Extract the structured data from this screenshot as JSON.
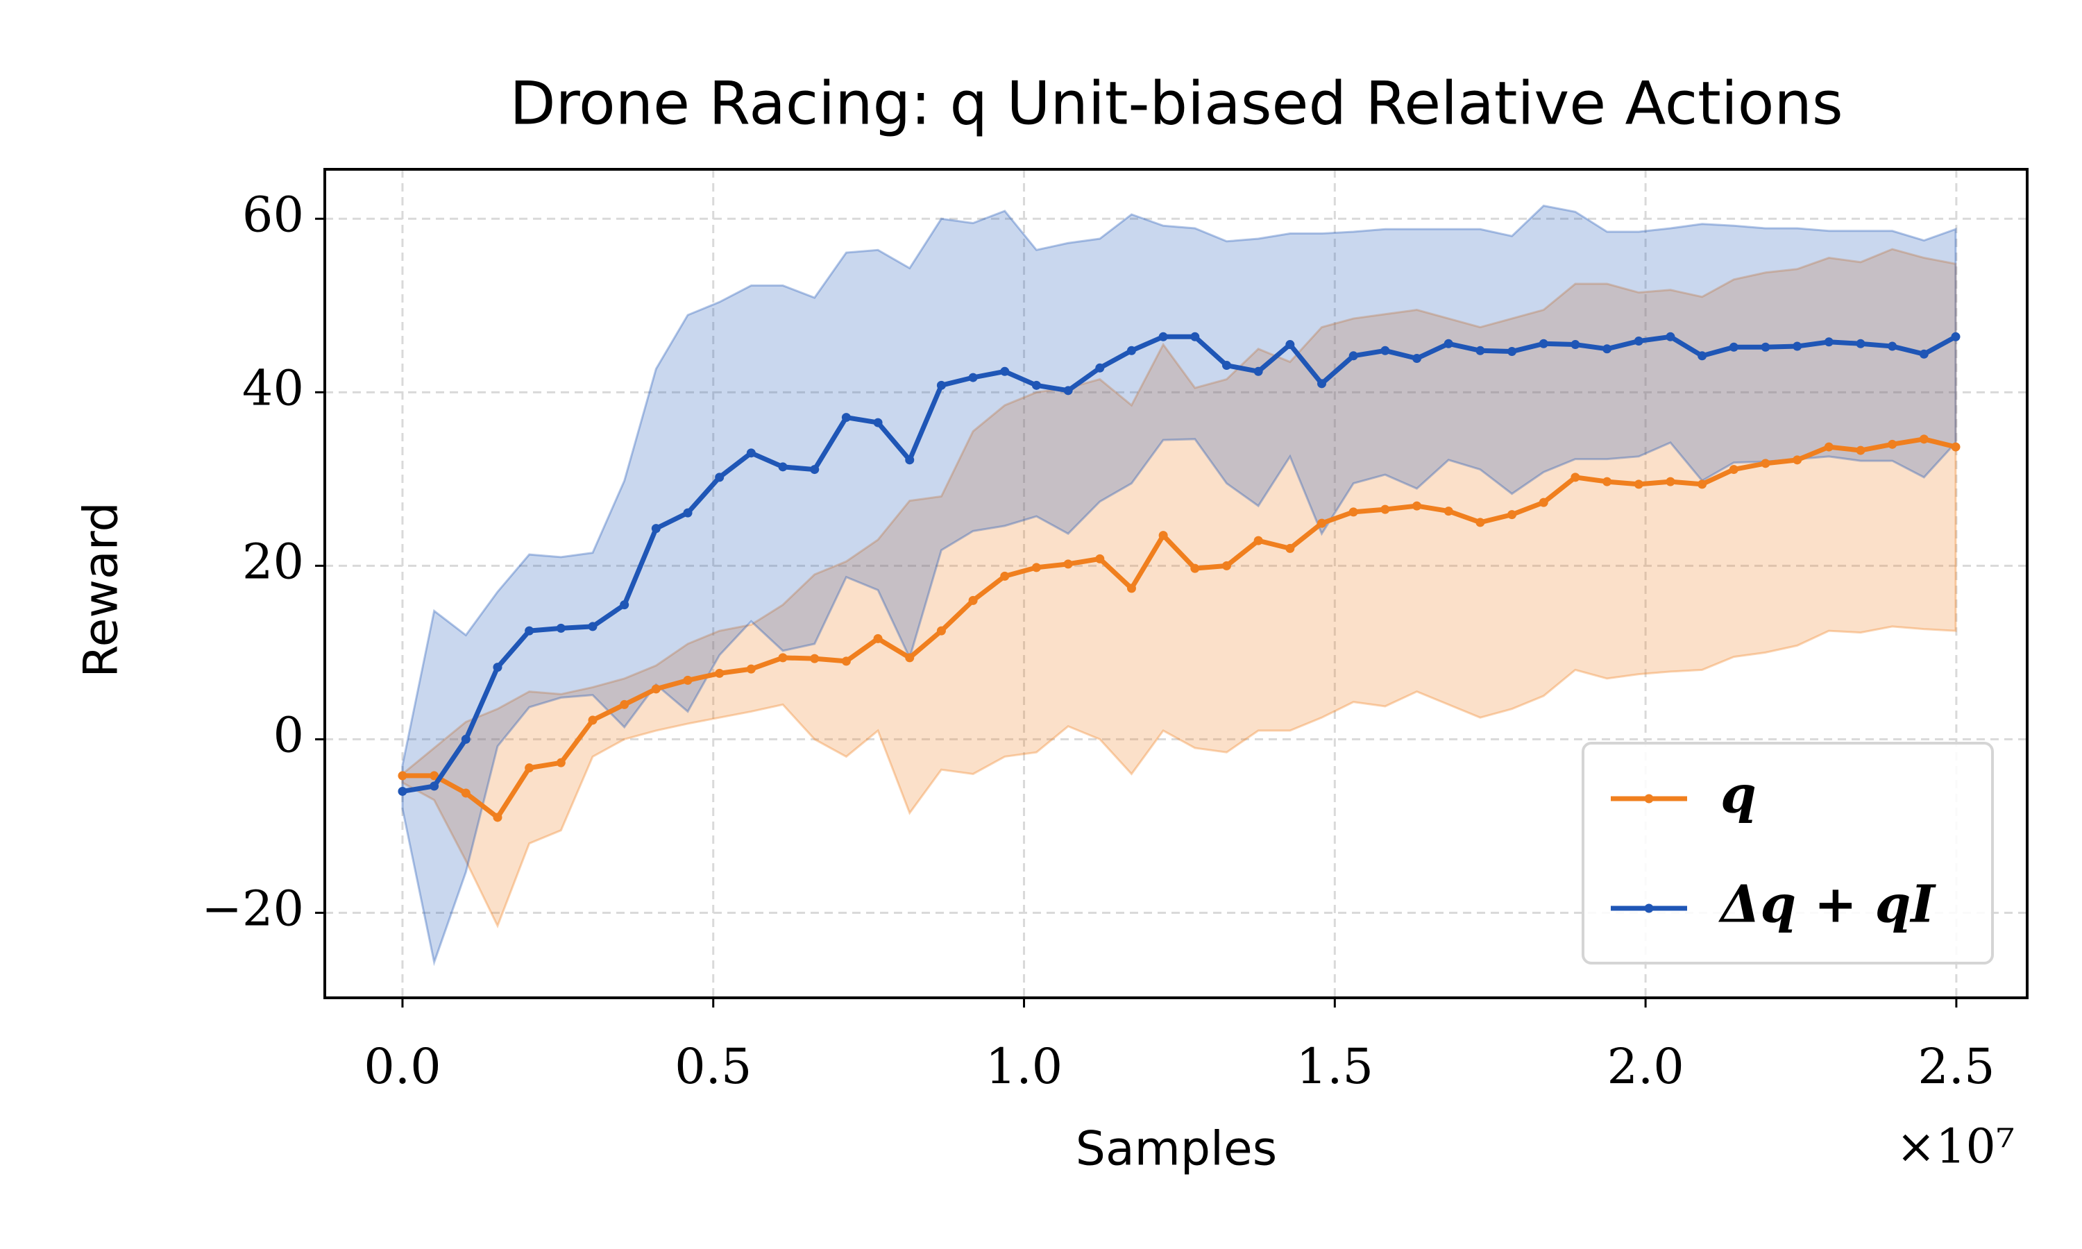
{
  "chart_data": {
    "type": "line",
    "title": "Drone Racing: q Unit-biased Relative Actions",
    "x_label": "Samples",
    "y_label": "Reward",
    "x_offset_label": "×10⁷",
    "x": [
      0,
      0.051,
      0.102,
      0.153,
      0.204,
      0.255,
      0.306,
      0.357,
      0.408,
      0.459,
      0.51,
      0.561,
      0.612,
      0.663,
      0.714,
      0.765,
      0.816,
      0.867,
      0.918,
      0.969,
      1.02,
      1.071,
      1.122,
      1.173,
      1.224,
      1.275,
      1.326,
      1.377,
      1.428,
      1.479,
      1.53,
      1.581,
      1.632,
      1.683,
      1.734,
      1.785,
      1.836,
      1.887,
      1.938,
      1.989,
      2.04,
      2.091,
      2.142,
      2.193,
      2.244,
      2.295,
      2.346,
      2.397,
      2.448,
      2.499
    ],
    "series": [
      {
        "name": "q",
        "color": "#f07f1e",
        "values": [
          -4.2,
          -4.2,
          -6.2,
          -9,
          -3.3,
          -2.7,
          2.2,
          4,
          5.8,
          6.8,
          7.6,
          8.1,
          9.4,
          9.3,
          9,
          11.6,
          9.4,
          12.5,
          16,
          18.8,
          19.8,
          20.2,
          20.8,
          17.4,
          23.5,
          19.7,
          20,
          22.9,
          22,
          24.9,
          26.2,
          26.5,
          26.9,
          26.3,
          25,
          25.9,
          27.3,
          30.2,
          29.7,
          29.4,
          29.7,
          29.4,
          31.1,
          31.8,
          32.2,
          33.7,
          33.3,
          34,
          34.6,
          33.7
        ],
        "lower": [
          -5,
          -7,
          -14,
          -21.5,
          -12,
          -10.5,
          -2,
          0,
          1,
          1.8,
          2.5,
          3.2,
          4,
          0,
          -2,
          1,
          -8.5,
          -3.5,
          -4,
          -2,
          -1.5,
          1.5,
          0,
          -4,
          1,
          -1,
          -1.5,
          1,
          1,
          2.5,
          4.3,
          3.8,
          5.5,
          4,
          2.5,
          3.5,
          5,
          8,
          7,
          7.5,
          7.8,
          8,
          9.5,
          10,
          10.8,
          12.5,
          12.3,
          13,
          12.7,
          12.5
        ],
        "upper": [
          -4,
          -1,
          2,
          3.5,
          5.5,
          5.2,
          6,
          7,
          8.5,
          11,
          12.5,
          13.2,
          15.5,
          19,
          20.5,
          23,
          27.5,
          28,
          35.5,
          38.5,
          40,
          40.5,
          41.5,
          38.5,
          45.5,
          40.5,
          41.5,
          45,
          43.5,
          47.5,
          48.5,
          49,
          49.5,
          48.5,
          47.5,
          48.5,
          49.5,
          52.5,
          52.5,
          51.5,
          51.8,
          51,
          53,
          53.8,
          54.2,
          55.5,
          55,
          56.5,
          55.5,
          54.8
        ]
      },
      {
        "name": "Δq + qI",
        "color": "#1f56b6",
        "values": [
          -6,
          -5.4,
          0,
          8.3,
          12.5,
          12.8,
          13,
          15.5,
          24.3,
          26.1,
          30.2,
          33,
          31.4,
          31.1,
          37.1,
          36.5,
          32.2,
          40.8,
          41.7,
          42.4,
          40.8,
          40.2,
          42.8,
          44.8,
          46.4,
          46.4,
          43.1,
          42.4,
          45.5,
          41,
          44.2,
          44.8,
          43.9,
          45.6,
          44.8,
          44.7,
          45.6,
          45.5,
          45,
          45.9,
          46.4,
          44.2,
          45.2,
          45.2,
          45.3,
          45.8,
          45.6,
          45.3,
          44.4,
          46.4
        ],
        "lower": [
          -8,
          -25.7,
          -15.3,
          -0.8,
          3.7,
          4.8,
          5.1,
          1.4,
          6.3,
          3.2,
          9.7,
          13.6,
          10.2,
          11,
          18.7,
          17.2,
          9.4,
          21.8,
          24,
          24.6,
          25.7,
          23.7,
          27.4,
          29.5,
          34.5,
          34.6,
          29.5,
          26.9,
          32.6,
          23.7,
          29.5,
          30.5,
          28.9,
          32.2,
          31.1,
          28.3,
          30.8,
          32.3,
          32.3,
          32.6,
          34.2,
          29.8,
          31.9,
          32,
          32.3,
          32.6,
          32.1,
          32.1,
          30.2,
          34.2
        ],
        "upper": [
          -3,
          14.8,
          12,
          17,
          21.3,
          21,
          21.5,
          29.8,
          42.7,
          48.9,
          50.4,
          52.3,
          52.3,
          50.9,
          56.1,
          56.4,
          54.3,
          60,
          59.5,
          60.9,
          56.4,
          57.2,
          57.7,
          60.5,
          59.2,
          58.9,
          57.4,
          57.7,
          58.3,
          58.3,
          58.5,
          58.8,
          58.8,
          58.8,
          58.8,
          58,
          61.5,
          60.8,
          58.5,
          58.5,
          58.9,
          59.4,
          59.2,
          58.9,
          58.9,
          58.6,
          58.6,
          58.6,
          57.5,
          58.8
        ]
      }
    ],
    "band_opacity": 0.24,
    "xlim": [
      -0.125,
      2.614
    ],
    "ylim": [
      -29.8,
      65.7
    ],
    "xticks": [
      {
        "value": 0,
        "label": "0.0"
      },
      0.5,
      {
        "value": 1,
        "label": "1.0"
      },
      1.5,
      {
        "value": 2,
        "label": "2.0"
      },
      2.5
    ],
    "yticks": [
      {
        "value": -20,
        "label": "−20"
      },
      0,
      20,
      40,
      60
    ],
    "grid": true,
    "legend": "lower right"
  }
}
